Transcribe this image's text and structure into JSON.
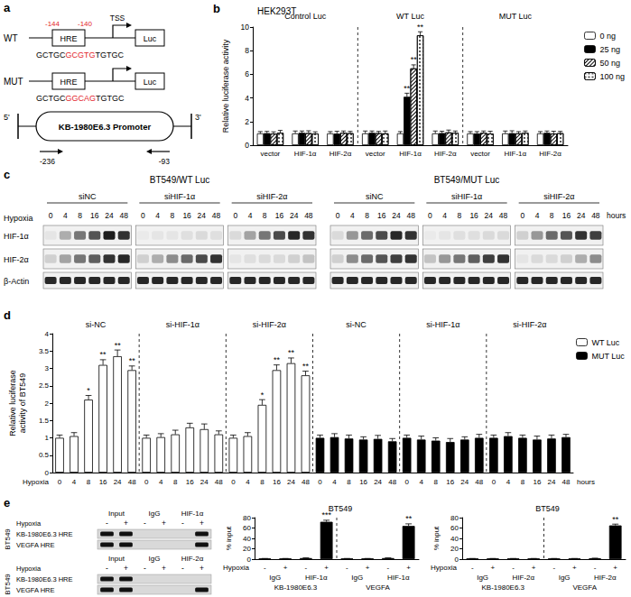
{
  "panel_a": {
    "label": "a",
    "constructs": [
      {
        "name": "WT",
        "element": "HRE",
        "reporter": "Luc",
        "sequence": {
          "before": "GCTGC",
          "site": "GCGTG",
          "after": "TGTGC"
        }
      },
      {
        "name": "MUT",
        "element": "HRE",
        "reporter": "Luc",
        "sequence": {
          "before": "GCTGC",
          "site": "GGCAG",
          "after": "TGTGC"
        }
      }
    ],
    "hre_positions": [
      "-144",
      "-140"
    ],
    "tss": "TSS",
    "promoter": {
      "name": "KB-1980E6.3 Promoter",
      "ends": [
        "5'",
        "3'"
      ],
      "primers": [
        "-236",
        "-93"
      ]
    }
  },
  "panel_c": {
    "label": "c",
    "condition": "Hypoxia",
    "unit": "hours",
    "timepoints": [
      0,
      4,
      8,
      16,
      24,
      48
    ],
    "row_labels": [
      "HIF-1α",
      "HIF-2α",
      "β-Actin"
    ],
    "panels": [
      {
        "title": "BT549/WT Luc",
        "groups": [
          {
            "name": "siNC",
            "bands": [
              [
                0.05,
                0.3,
                0.55,
                0.7,
                0.95,
                0.85
              ],
              [
                0.15,
                0.35,
                0.55,
                0.65,
                0.85,
                0.9
              ],
              [
                0.9,
                0.9,
                0.9,
                0.9,
                0.9,
                0.9
              ]
            ]
          },
          {
            "name": "siHIF-1α",
            "bands": [
              [
                0.03,
                0.05,
                0.05,
                0.08,
                0.1,
                0.08
              ],
              [
                0.15,
                0.3,
                0.45,
                0.6,
                0.75,
                0.85
              ],
              [
                0.9,
                0.9,
                0.9,
                0.9,
                0.9,
                0.9
              ]
            ]
          },
          {
            "name": "siHIF-2α",
            "bands": [
              [
                0.1,
                0.35,
                0.55,
                0.75,
                0.9,
                0.85
              ],
              [
                0.05,
                0.08,
                0.1,
                0.1,
                0.15,
                0.2
              ],
              [
                0.9,
                0.9,
                0.9,
                0.9,
                0.9,
                0.9
              ]
            ]
          }
        ]
      },
      {
        "title": "BT549/MUT Luc",
        "groups": [
          {
            "name": "siNC",
            "bands": [
              [
                0.1,
                0.4,
                0.6,
                0.75,
                0.9,
                0.85
              ],
              [
                0.15,
                0.45,
                0.6,
                0.7,
                0.8,
                0.85
              ],
              [
                0.9,
                0.9,
                0.9,
                0.9,
                0.9,
                0.9
              ]
            ]
          },
          {
            "name": "siHIF-1α",
            "bands": [
              [
                0.03,
                0.05,
                0.08,
                0.08,
                0.1,
                0.1
              ],
              [
                0.2,
                0.4,
                0.55,
                0.65,
                0.8,
                0.85
              ],
              [
                0.9,
                0.9,
                0.9,
                0.9,
                0.9,
                0.9
              ]
            ]
          },
          {
            "name": "siHIF-2α",
            "bands": [
              [
                0.15,
                0.4,
                0.6,
                0.7,
                0.85,
                0.8
              ],
              [
                0.05,
                0.1,
                0.1,
                0.15,
                0.3,
                0.45
              ],
              [
                0.9,
                0.9,
                0.9,
                0.9,
                0.9,
                0.9
              ]
            ]
          }
        ]
      }
    ]
  },
  "panel_e_gel": {
    "label": "e",
    "cell_line": "BT549",
    "condition": "Hypoxia",
    "states": [
      "-",
      "+"
    ],
    "blocks": [
      {
        "columns": [
          "Input",
          "IgG",
          "HIF-1α"
        ],
        "rows": [
          "KB-1980E6.3 HRE",
          "VEGFA HRE"
        ],
        "bands": [
          [
            1,
            1,
            0,
            0,
            0,
            1
          ],
          [
            1,
            1,
            0,
            0,
            0,
            1
          ]
        ]
      },
      {
        "columns": [
          "Input",
          "IgG",
          "HIF-2α"
        ],
        "rows": [
          "KB-1980E6.3 HRE",
          "VEGFA HRE"
        ],
        "bands": [
          [
            1,
            1,
            0,
            0,
            0,
            0
          ],
          [
            1,
            1,
            0,
            0,
            0,
            1
          ]
        ]
      }
    ]
  },
  "chart_data": [
    {
      "label": "b",
      "type": "bar",
      "title": "HEK293T",
      "ylabel": "Relative luciferase activity",
      "categories": [
        "vector",
        "HIF-1α",
        "HIF-2α",
        "vector",
        "HIF-1α",
        "HIF-2α",
        "vector",
        "HIF-1α",
        "HIF-2α"
      ],
      "groups": [
        "Control Luc",
        "WT Luc",
        "MUT Luc"
      ],
      "ylim": [
        0,
        10
      ],
      "yticks": [
        0,
        2,
        4,
        6,
        8,
        10
      ],
      "grid": false,
      "legend": "top-right",
      "series": [
        {
          "name": "0 ng",
          "color": "#ffffff",
          "values": [
            1,
            1,
            1,
            1,
            1,
            1,
            1,
            1,
            1
          ],
          "errors": [
            0.15,
            0.2,
            0.15,
            0.2,
            0.15,
            0.2,
            0.15,
            0.2,
            0.15
          ]
        },
        {
          "name": "25 ng",
          "color": "#000000",
          "values": [
            1.02,
            1.05,
            0.98,
            1.05,
            4.1,
            1.03,
            1.0,
            1.02,
            1.05
          ],
          "errors": [
            0.15,
            0.15,
            0.2,
            0.15,
            0.3,
            0.15,
            0.15,
            0.2,
            0.15
          ],
          "stars": [
            null,
            null,
            null,
            null,
            "**",
            null,
            null,
            null,
            null
          ]
        },
        {
          "name": "50 ng",
          "color": "#ffffff",
          "values": [
            0.98,
            1.02,
            1.05,
            1.02,
            6.5,
            1.08,
            1.05,
            1.0,
            0.98
          ],
          "errors": [
            0.15,
            0.2,
            0.15,
            0.15,
            0.3,
            0.2,
            0.15,
            0.15,
            0.2
          ],
          "stars": [
            null,
            null,
            null,
            null,
            "**",
            null,
            null,
            null,
            null
          ]
        },
        {
          "name": "100 ng",
          "color": "#ffffff",
          "values": [
            1.05,
            0.98,
            1.02,
            1.0,
            9.3,
            1.05,
            0.98,
            1.05,
            1.02
          ],
          "errors": [
            0.2,
            0.15,
            0.15,
            0.2,
            0.3,
            0.15,
            0.2,
            0.15,
            0.15
          ],
          "stars": [
            null,
            null,
            null,
            null,
            "**",
            null,
            null,
            null,
            null
          ]
        }
      ]
    },
    {
      "label": "d",
      "type": "bar",
      "ylabel": "Relative luciferase activity of BT549",
      "xlabel": "Hypoxia",
      "x_unit": "hours",
      "categories": [
        "0",
        "4",
        "8",
        "16",
        "24",
        "48",
        "0",
        "4",
        "8",
        "16",
        "24",
        "48",
        "0",
        "4",
        "8",
        "16",
        "24",
        "48",
        "0",
        "4",
        "8",
        "16",
        "24",
        "48",
        "0",
        "4",
        "8",
        "16",
        "24",
        "48",
        "0",
        "4",
        "8",
        "16",
        "24",
        "48"
      ],
      "groups": [
        "si-NC",
        "si-HIF-1α",
        "si-HIF-2α",
        "si-NC",
        "si-HIF-1α",
        "si-HIF-2α"
      ],
      "ylim": [
        0,
        4
      ],
      "yticks": [
        0,
        0.5,
        1,
        1.5,
        2,
        2.5,
        3,
        3.5,
        4
      ],
      "grid": false,
      "legend": "top-right",
      "series": [
        {
          "name": "WT Luc",
          "color": "#ffffff",
          "values": [
            1.0,
            1.05,
            2.1,
            3.1,
            3.35,
            2.95,
            1.0,
            1.02,
            1.1,
            1.3,
            1.25,
            1.1,
            1.0,
            1.05,
            1.95,
            2.95,
            3.15,
            2.8,
            null,
            null,
            null,
            null,
            null,
            null,
            null,
            null,
            null,
            null,
            null,
            null,
            null,
            null,
            null,
            null,
            null,
            null
          ],
          "errors": [
            0.08,
            0.1,
            0.12,
            0.15,
            0.18,
            0.12,
            0.08,
            0.1,
            0.12,
            0.12,
            0.15,
            0.1,
            0.08,
            0.1,
            0.15,
            0.15,
            0.15,
            0.12,
            null,
            null,
            null,
            null,
            null,
            null,
            null,
            null,
            null,
            null,
            null,
            null,
            null,
            null,
            null,
            null,
            null,
            null
          ],
          "stars": [
            null,
            null,
            "*",
            "**",
            "**",
            "**",
            null,
            null,
            null,
            null,
            null,
            null,
            null,
            null,
            "*",
            "**",
            "**",
            "**",
            null,
            null,
            null,
            null,
            null,
            null,
            null,
            null,
            null,
            null,
            null,
            null,
            null,
            null,
            null,
            null,
            null,
            null
          ]
        },
        {
          "name": "MUT Luc",
          "color": "#000000",
          "values": [
            null,
            null,
            null,
            null,
            null,
            null,
            null,
            null,
            null,
            null,
            null,
            null,
            null,
            null,
            null,
            null,
            null,
            null,
            1.0,
            1.02,
            0.98,
            0.95,
            0.97,
            0.9,
            1.0,
            0.95,
            0.92,
            0.88,
            0.95,
            1.0,
            1.0,
            1.05,
            1.0,
            0.95,
            0.98,
            1.02
          ],
          "errors": [
            null,
            null,
            null,
            null,
            null,
            null,
            null,
            null,
            null,
            null,
            null,
            null,
            null,
            null,
            null,
            null,
            null,
            null,
            0.08,
            0.1,
            0.1,
            0.08,
            0.1,
            0.08,
            0.08,
            0.1,
            0.08,
            0.1,
            0.08,
            0.1,
            0.08,
            0.1,
            0.08,
            0.1,
            0.1,
            0.08
          ]
        }
      ]
    },
    {
      "type": "bar",
      "title": "BT549",
      "ylabel": "% input",
      "xlabel": "Hypoxia",
      "categories": [
        "-",
        "+",
        "-",
        "+",
        "-",
        "+",
        "-",
        "+"
      ],
      "subgroups": [
        "IgG",
        "HIF-1α",
        "IgG",
        "HIF-1α"
      ],
      "groups": [
        "KB-1980E6.3",
        "VEGFA"
      ],
      "ylim": [
        0,
        80
      ],
      "yticks": [
        0,
        20,
        40,
        60,
        80
      ],
      "grid": false,
      "color": "#000000",
      "values": [
        1,
        1,
        2,
        72,
        1,
        1,
        2,
        64
      ],
      "errors": [
        0.3,
        0.3,
        0.5,
        3,
        0.3,
        0.3,
        0.5,
        4
      ],
      "stars": [
        null,
        null,
        null,
        "***",
        null,
        null,
        null,
        "**"
      ]
    },
    {
      "type": "bar",
      "title": "BT549",
      "ylabel": "% input",
      "xlabel": "Hypoxia",
      "categories": [
        "-",
        "+",
        "-",
        "+",
        "-",
        "+",
        "-",
        "+"
      ],
      "subgroups": [
        "IgG",
        "HIF-2α",
        "IgG",
        "HIF-2α"
      ],
      "groups": [
        "KB-1980E6.3",
        "VEGFA"
      ],
      "ylim": [
        0,
        80
      ],
      "yticks": [
        0,
        20,
        40,
        60,
        80
      ],
      "grid": false,
      "color": "#000000",
      "values": [
        1,
        1,
        1,
        1,
        1,
        1,
        1.5,
        65
      ],
      "errors": [
        0.3,
        0.3,
        0.3,
        0.3,
        0.3,
        0.3,
        0.4,
        2.5
      ],
      "stars": [
        null,
        null,
        null,
        null,
        null,
        null,
        null,
        "**"
      ]
    }
  ]
}
